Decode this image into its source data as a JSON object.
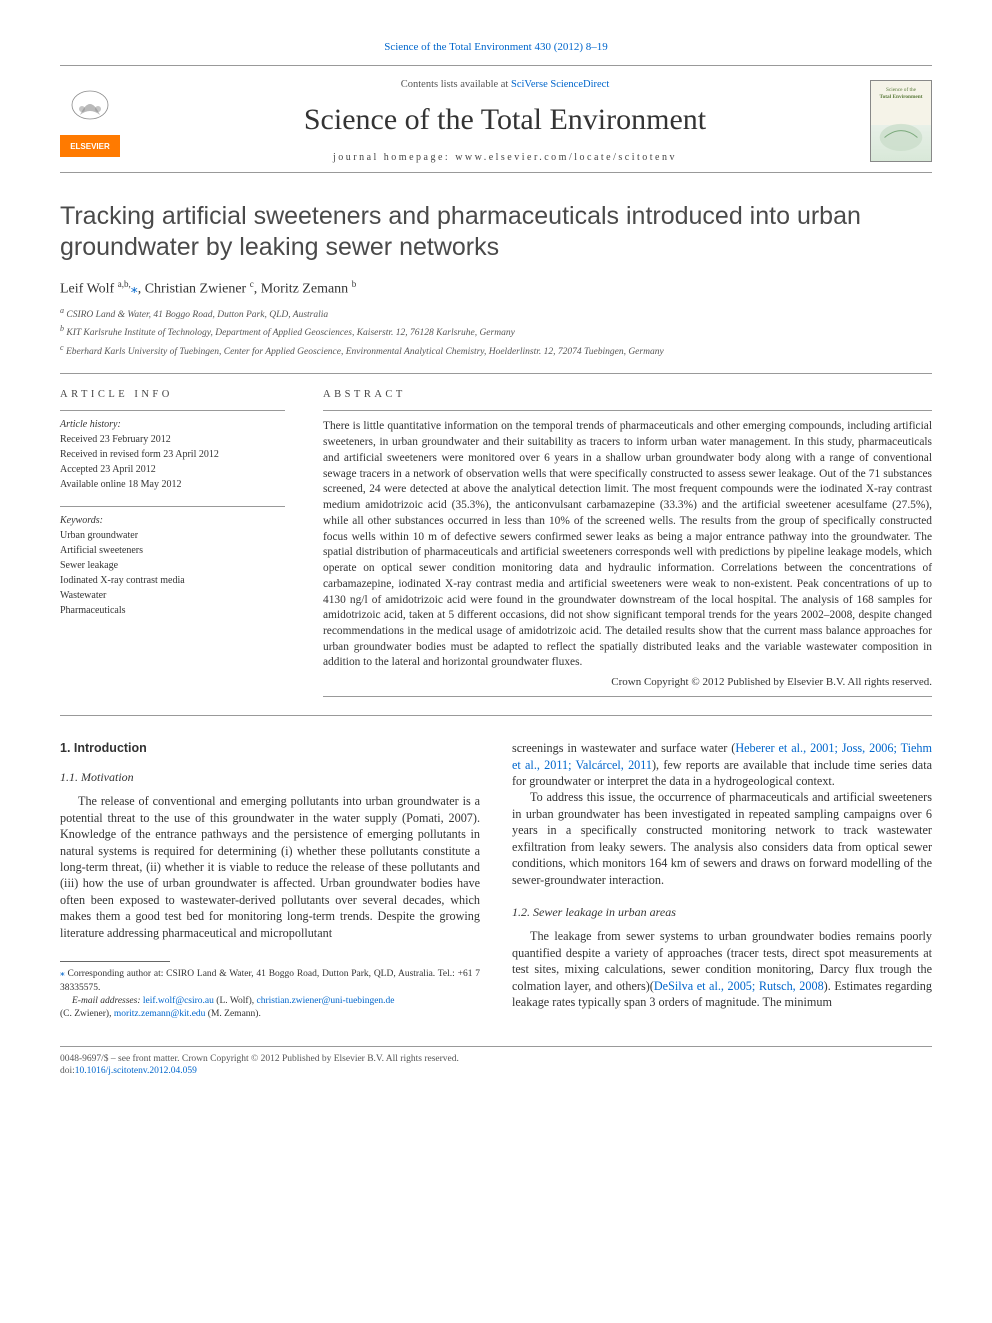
{
  "citation_line": "Science of the Total Environment 430 (2012) 8–19",
  "header": {
    "contents_prefix": "Contents lists available at ",
    "contents_link_text": "SciVerse ScienceDirect",
    "journal_name": "Science of the Total Environment",
    "homepage_prefix": "journal homepage: ",
    "homepage_url": "www.elsevier.com/locate/scitotenv"
  },
  "title": "Tracking artificial sweeteners and pharmaceuticals introduced into urban groundwater by leaking sewer networks",
  "authors_html": "Leif Wolf <sup>a,b,</sup><span class='star'>⁎</span>, Christian Zwiener <sup>c</sup>, Moritz Zemann <sup>b</sup>",
  "affiliations": [
    "a CSIRO Land & Water, 41 Boggo Road, Dutton Park, QLD, Australia",
    "b KIT Karlsruhe Institute of Technology, Department of Applied Geosciences, Kaiserstr. 12, 76128 Karlsruhe, Germany",
    "c Eberhard Karls University of Tuebingen, Center for Applied Geoscience, Environmental Analytical Chemistry, Hoelderlinstr. 12, 72074 Tuebingen, Germany"
  ],
  "info_heading": "ARTICLE INFO",
  "abstract_heading": "ABSTRACT",
  "history": {
    "label": "Article history:",
    "items": [
      "Received 23 February 2012",
      "Received in revised form 23 April 2012",
      "Accepted 23 April 2012",
      "Available online 18 May 2012"
    ]
  },
  "keywords": {
    "label": "Keywords:",
    "items": [
      "Urban groundwater",
      "Artificial sweeteners",
      "Sewer leakage",
      "Iodinated X-ray contrast media",
      "Wastewater",
      "Pharmaceuticals"
    ]
  },
  "abstract": "There is little quantitative information on the temporal trends of pharmaceuticals and other emerging compounds, including artificial sweeteners, in urban groundwater and their suitability as tracers to inform urban water management. In this study, pharmaceuticals and artificial sweeteners were monitored over 6 years in a shallow urban groundwater body along with a range of conventional sewage tracers in a network of observation wells that were specifically constructed to assess sewer leakage. Out of the 71 substances screened, 24 were detected at above the analytical detection limit. The most frequent compounds were the iodinated X-ray contrast medium amidotrizoic acid (35.3%), the anticonvulsant carbamazepine (33.3%) and the artificial sweetener acesulfame (27.5%), while all other substances occurred in less than 10% of the screened wells. The results from the group of specifically constructed focus wells within 10 m of defective sewers confirmed sewer leaks as being a major entrance pathway into the groundwater. The spatial distribution of pharmaceuticals and artificial sweeteners corresponds well with predictions by pipeline leakage models, which operate on optical sewer condition monitoring data and hydraulic information. Correlations between the concentrations of carbamazepine, iodinated X-ray contrast media and artificial sweeteners were weak to non-existent. Peak concentrations of up to 4130 ng/l of amidotrizoic acid were found in the groundwater downstream of the local hospital. The analysis of 168 samples for amidotrizoic acid, taken at 5 different occasions, did not show significant temporal trends for the years 2002–2008, despite changed recommendations in the medical usage of amidotrizoic acid. The detailed results show that the current mass balance approaches for urban groundwater bodies must be adapted to reflect the spatially distributed leaks and the variable wastewater composition in addition to the lateral and horizontal groundwater fluxes.",
  "abstract_copyright": "Crown Copyright © 2012 Published by Elsevier B.V. All rights reserved.",
  "body": {
    "h1": "1. Introduction",
    "h2_1": "1.1. Motivation",
    "p1": "The release of conventional and emerging pollutants into urban groundwater is a potential threat to the use of this groundwater in the water supply (Pomati, 2007). Knowledge of the entrance pathways and the persistence of emerging pollutants in natural systems is required for determining (i) whether these pollutants constitute a long-term threat, (ii) whether it is viable to reduce the release of these pollutants and (iii) how the use of urban groundwater is affected. Urban groundwater bodies have often been exposed to wastewater-derived pollutants over several decades, which makes them a good test bed for monitoring long-term trends. Despite the growing literature addressing pharmaceutical and micropollutant",
    "p2_pre": "screenings in wastewater and surface water (",
    "p2_link": "Heberer et al., 2001; Joss, 2006; Tiehm et al., 2011; Valcárcel, 2011",
    "p2_post": "), few reports are available that include time series data for groundwater or interpret the data in a hydrogeological context.",
    "p3": "To address this issue, the occurrence of pharmaceuticals and artificial sweeteners in urban groundwater has been investigated in repeated sampling campaigns over 6 years in a specifically constructed monitoring network to track wastewater exfiltration from leaky sewers. The analysis also considers data from optical sewer conditions, which monitors 164 km of sewers and draws on forward modelling of the sewer-groundwater interaction.",
    "h2_2": "1.2. Sewer leakage in urban areas",
    "p4_pre": "The leakage from sewer systems to urban groundwater bodies remains poorly quantified despite a variety of approaches (tracer tests, direct spot measurements at test sites, mixing calculations, sewer condition monitoring, Darcy flux trough the colmation layer, and others)(",
    "p4_link": "DeSilva et al., 2005; Rutsch, 2008",
    "p4_post": "). Estimates regarding leakage rates typically span 3 orders of magnitude. The minimum"
  },
  "footnotes": {
    "corr_star": "⁎",
    "corr_text": " Corresponding author at: CSIRO Land & Water, 41 Boggo Road, Dutton Park, QLD, Australia. Tel.: +61 7 38335575.",
    "emails_label": "E-mail addresses: ",
    "email1": "leif.wolf@csiro.au",
    "email1_who": " (L. Wolf), ",
    "email2": "christian.zwiener@uni-tuebingen.de",
    "email2_who": " (C. Zwiener), ",
    "email3": "moritz.zemann@kit.edu",
    "email3_who": " (M. Zemann)."
  },
  "footer": {
    "line1": "0048-9697/$ – see front matter. Crown Copyright © 2012 Published by Elsevier B.V. All rights reserved.",
    "doi_label": "doi:",
    "doi": "10.1016/j.scitotenv.2012.04.059"
  },
  "colors": {
    "link": "#0066cc",
    "text": "#333333",
    "rule": "#999999",
    "elsevier_orange": "#ff7a00",
    "elsevier_grey": "#8a8a8a"
  }
}
